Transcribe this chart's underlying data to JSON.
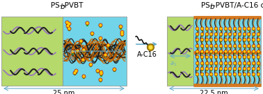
{
  "title_left": "PS-b-PVBT",
  "title_right": "PS-b-PVBT/A-C16 complex",
  "label_ac16": "A-C16",
  "label_25nm": "25 nm",
  "label_225nm": "22.5 nm",
  "green_color": "#b5d96a",
  "cyan_color": "#72d4e8",
  "arrow_color": "#6aaecc",
  "orange_color": "#d47820",
  "ps_purple": "#9977bb",
  "ps_black": "#222222",
  "pvbt_black": "#1a1a1a",
  "pvbt_orange": "#cc6600",
  "thymine_red": "#cc1111",
  "thymine_yellow": "#ffcc00",
  "thymine_green": "#33aa33",
  "fig_width": 3.78,
  "fig_height": 1.36,
  "dpi": 100
}
